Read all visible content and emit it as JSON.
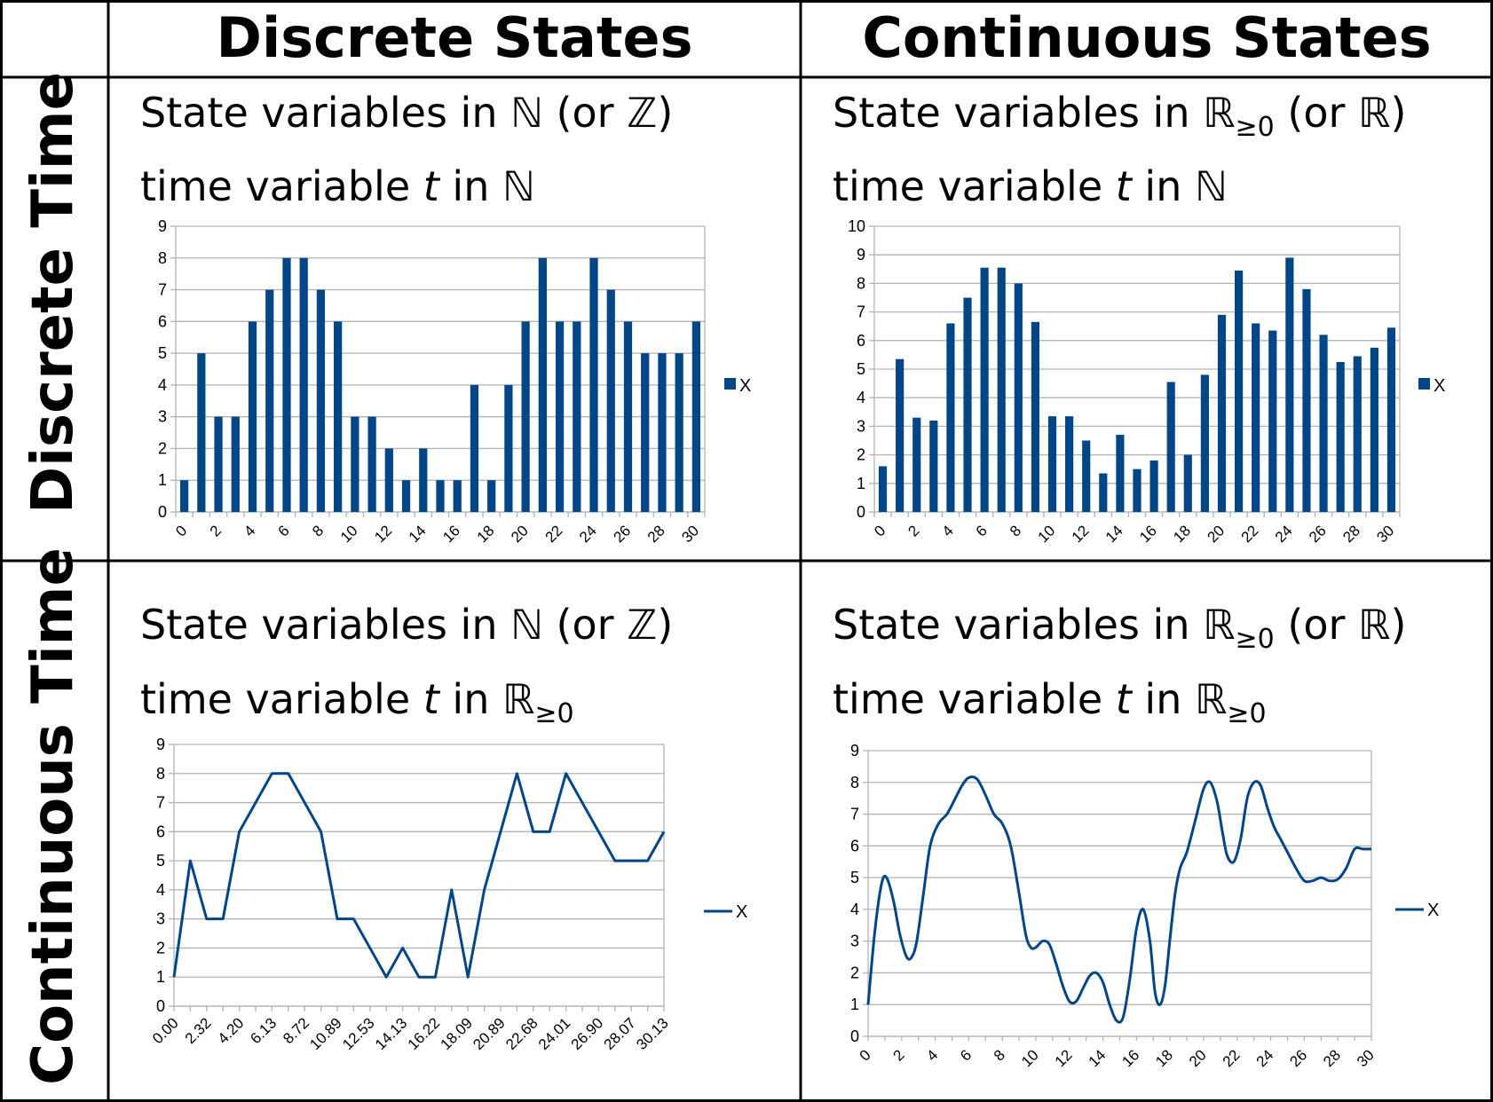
{
  "table": {
    "col_headers": [
      "Discrete States",
      "Continuous States"
    ],
    "row_headers": [
      "Discrete Time",
      "Continuous Time"
    ]
  },
  "cells": {
    "dd": {
      "state_text": "State variables in ℕ (or ℤ)",
      "time_prefix": "time variable ",
      "time_var": "t",
      "time_in": " in ",
      "time_set": "ℕ",
      "time_sub": ""
    },
    "dc": {
      "state_prefix": "State variables in ",
      "state_set": "ℝ",
      "state_sub": "≥0",
      "state_suffix": " (or ℝ)",
      "time_prefix": "time variable ",
      "time_var": "t",
      "time_in": " in ",
      "time_set": "ℕ",
      "time_sub": ""
    },
    "cd": {
      "state_text": "State variables in ℕ (or ℤ)",
      "time_prefix": "time variable ",
      "time_var": "t",
      "time_in": " in ",
      "time_set": "ℝ",
      "time_sub": "≥0"
    },
    "cc": {
      "state_prefix": "State variables in ",
      "state_set": "ℝ",
      "state_sub": "≥0",
      "state_suffix": " (or ℝ)",
      "time_prefix": "time variable ",
      "time_var": "t",
      "time_in": " in ",
      "time_set": "ℝ",
      "time_sub": "≥0"
    }
  },
  "colors": {
    "series": "#004586",
    "grid": "#b3b3b3",
    "axis": "#b3b3b3",
    "text": "#000000"
  },
  "chart_data": [
    {
      "id": "discrete-discrete",
      "type": "bar",
      "categories": [
        "0",
        "1",
        "2",
        "3",
        "4",
        "5",
        "6",
        "7",
        "8",
        "9",
        "10",
        "11",
        "12",
        "13",
        "14",
        "15",
        "16",
        "17",
        "18",
        "19",
        "20",
        "21",
        "22",
        "23",
        "24",
        "25",
        "26",
        "27",
        "28",
        "29",
        "30"
      ],
      "x_tick_labels": [
        "0",
        "2",
        "4",
        "6",
        "8",
        "10",
        "12",
        "14",
        "16",
        "18",
        "20",
        "22",
        "24",
        "26",
        "28",
        "30"
      ],
      "series": [
        {
          "name": "X",
          "values": [
            1,
            5,
            3,
            3,
            6,
            7,
            8,
            8,
            7,
            6,
            3,
            3,
            2,
            1,
            2,
            1,
            1,
            4,
            1,
            4,
            6,
            8,
            6,
            6,
            8,
            7,
            6,
            5,
            5,
            5,
            6
          ]
        }
      ],
      "ylim": [
        0,
        9
      ],
      "y_ticks": [
        0,
        1,
        2,
        3,
        4,
        5,
        6,
        7,
        8,
        9
      ],
      "grid": true,
      "legend": "right"
    },
    {
      "id": "discrete-continuous",
      "type": "bar",
      "categories": [
        "0",
        "1",
        "2",
        "3",
        "4",
        "5",
        "6",
        "7",
        "8",
        "9",
        "10",
        "11",
        "12",
        "13",
        "14",
        "15",
        "16",
        "17",
        "18",
        "19",
        "20",
        "21",
        "22",
        "23",
        "24",
        "25",
        "26",
        "27",
        "28",
        "29",
        "30"
      ],
      "x_tick_labels": [
        "0",
        "2",
        "4",
        "6",
        "8",
        "10",
        "12",
        "14",
        "16",
        "18",
        "20",
        "22",
        "24",
        "26",
        "28",
        "30"
      ],
      "series": [
        {
          "name": "X",
          "values": [
            1.6,
            5.35,
            3.3,
            3.2,
            6.6,
            7.5,
            8.55,
            8.55,
            8.0,
            6.65,
            3.35,
            3.35,
            2.5,
            1.35,
            2.7,
            1.5,
            1.8,
            4.55,
            2.0,
            4.8,
            6.9,
            8.45,
            6.6,
            6.35,
            8.9,
            7.8,
            6.2,
            5.25,
            5.45,
            5.75,
            6.45
          ]
        }
      ],
      "ylim": [
        0,
        10
      ],
      "y_ticks": [
        0,
        1,
        2,
        3,
        4,
        5,
        6,
        7,
        8,
        9,
        10
      ],
      "grid": true,
      "legend": "right"
    },
    {
      "id": "continuous-discrete",
      "type": "line",
      "x": [
        0,
        1.05,
        2.1,
        3.15,
        4.2,
        5.2,
        6.13,
        7.2,
        8.72,
        9.5,
        10.89,
        11.7,
        12.53,
        13.3,
        14.13,
        15.2,
        16.22,
        17.2,
        18.09,
        19.2,
        20.89,
        21.8,
        22.68,
        23.4,
        24.01,
        25.5,
        26.9,
        27.2,
        28.07,
        29.4,
        30.13
      ],
      "series": [
        {
          "name": "X",
          "values": [
            1,
            5,
            3,
            3,
            6,
            7,
            8,
            8,
            7,
            6,
            3,
            3,
            2,
            1,
            2,
            1,
            1,
            4,
            1,
            4,
            6,
            8,
            6,
            6,
            8,
            7,
            6,
            5,
            5,
            5,
            6
          ]
        }
      ],
      "x_tick_labels": [
        "0.00",
        "2.32",
        "4.20",
        "6.13",
        "8.72",
        "10.89",
        "12.53",
        "14.13",
        "16.22",
        "18.09",
        "20.89",
        "22.68",
        "24.01",
        "26.90",
        "28.07",
        "30.13"
      ],
      "ylim": [
        0,
        9
      ],
      "y_ticks": [
        0,
        1,
        2,
        3,
        4,
        5,
        6,
        7,
        8,
        9
      ],
      "grid": true,
      "legend": "right"
    },
    {
      "id": "continuous-continuous",
      "type": "line",
      "x": [
        0,
        0.4,
        0.8,
        1.1,
        1.5,
        1.9,
        2.3,
        2.6,
        2.9,
        3.3,
        3.7,
        4.2,
        4.7,
        5.2,
        5.6,
        6.0,
        6.5,
        7.0,
        7.5,
        8.0,
        8.5,
        9.0,
        9.4,
        9.7,
        10.0,
        10.4,
        10.8,
        11.2,
        11.6,
        12.0,
        12.4,
        12.8,
        13.2,
        13.6,
        14.0,
        14.4,
        14.8,
        15.2,
        15.6,
        16.0,
        16.4,
        16.8,
        17.1,
        17.4,
        17.7,
        18.0,
        18.3,
        18.6,
        19.0,
        19.5,
        20.0,
        20.4,
        20.8,
        21.1,
        21.4,
        21.8,
        22.2,
        22.6,
        23.0,
        23.4,
        23.8,
        24.2,
        24.6,
        25.0,
        25.5,
        26.0,
        26.5,
        27.0,
        27.5,
        28.0,
        28.5,
        29.0,
        29.5,
        30.0
      ],
      "series": [
        {
          "name": "X",
          "values": [
            1.0,
            3.3,
            4.8,
            5.0,
            4.3,
            3.2,
            2.5,
            2.5,
            3.0,
            4.5,
            6.0,
            6.7,
            7.0,
            7.5,
            7.9,
            8.15,
            8.1,
            7.6,
            7.0,
            6.7,
            6.0,
            4.5,
            3.2,
            2.8,
            2.8,
            3.0,
            2.9,
            2.3,
            1.6,
            1.1,
            1.1,
            1.5,
            1.9,
            2.0,
            1.7,
            1.0,
            0.5,
            0.6,
            1.8,
            3.4,
            4.0,
            3.0,
            1.4,
            1.0,
            1.6,
            3.1,
            4.5,
            5.3,
            5.8,
            6.8,
            7.8,
            8.0,
            7.4,
            6.5,
            5.7,
            5.5,
            6.2,
            7.5,
            8.0,
            7.9,
            7.2,
            6.6,
            6.2,
            5.8,
            5.3,
            4.9,
            4.9,
            5.0,
            4.9,
            4.95,
            5.3,
            5.9,
            5.9,
            5.9
          ]
        }
      ],
      "x_tick_labels": [
        "0",
        "2",
        "4",
        "6",
        "8",
        "10",
        "12",
        "14",
        "16",
        "18",
        "20",
        "22",
        "24",
        "26",
        "28",
        "30"
      ],
      "xlim": [
        0,
        30
      ],
      "ylim": [
        0,
        9
      ],
      "y_ticks": [
        0,
        1,
        2,
        3,
        4,
        5,
        6,
        7,
        8,
        9
      ],
      "grid": true,
      "legend": "right"
    }
  ]
}
